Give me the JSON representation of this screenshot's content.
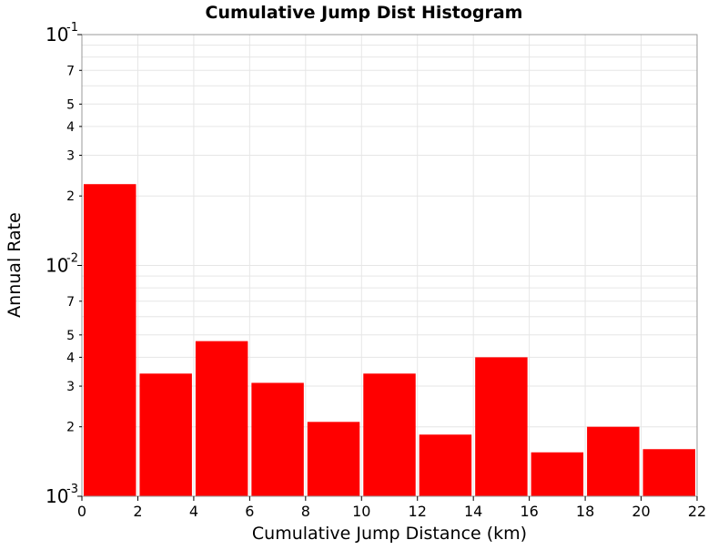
{
  "chart_data": {
    "type": "bar",
    "title": "Cumulative Jump Dist Histogram",
    "xlabel": "Cumulative Jump Distance (km)",
    "ylabel": "Annual Rate",
    "x_scale": "linear",
    "y_scale": "log",
    "xlim": [
      0,
      22
    ],
    "ylim": [
      0.001,
      0.1
    ],
    "x_ticks": [
      0,
      2,
      4,
      6,
      8,
      10,
      12,
      14,
      16,
      18,
      20,
      22
    ],
    "y_decade_ticks": [
      {
        "base": "10",
        "exp": "-3",
        "value": 0.001
      },
      {
        "base": "10",
        "exp": "-2",
        "value": 0.01
      },
      {
        "base": "10",
        "exp": "-1",
        "value": 0.1
      }
    ],
    "y_minor_ticks": [
      {
        "label": "2",
        "value": 0.002
      },
      {
        "label": "3",
        "value": 0.003
      },
      {
        "label": "4",
        "value": 0.004
      },
      {
        "label": "5",
        "value": 0.005
      },
      {
        "label": "7",
        "value": 0.007
      },
      {
        "label": "2",
        "value": 0.02
      },
      {
        "label": "3",
        "value": 0.03
      },
      {
        "label": "4",
        "value": 0.04
      },
      {
        "label": "5",
        "value": 0.05
      },
      {
        "label": "7",
        "value": 0.07
      }
    ],
    "grid": true,
    "bar_color": "#ff0000",
    "bars": [
      {
        "x": 1,
        "value": 0.0225
      },
      {
        "x": 3,
        "value": 0.0034
      },
      {
        "x": 5,
        "value": 0.0047
      },
      {
        "x": 7,
        "value": 0.0031
      },
      {
        "x": 9,
        "value": 0.0021
      },
      {
        "x": 11,
        "value": 0.0034
      },
      {
        "x": 13,
        "value": 0.00185
      },
      {
        "x": 15,
        "value": 0.004
      },
      {
        "x": 17,
        "value": 0.00155
      },
      {
        "x": 19,
        "value": 0.002
      },
      {
        "x": 21,
        "value": 0.0016
      }
    ]
  }
}
